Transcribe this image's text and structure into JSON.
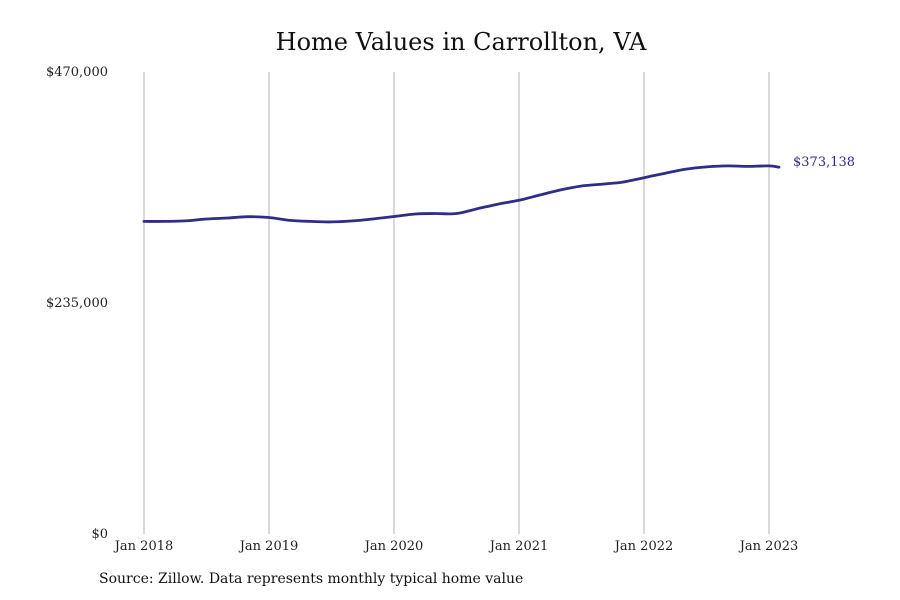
{
  "chart_data": {
    "type": "line",
    "title": "Home Values in Carrollton, VA",
    "xlabel": "",
    "ylabel": "",
    "ylim": [
      0,
      470000
    ],
    "y_ticks": [
      {
        "value": 0,
        "label": "$0"
      },
      {
        "value": 235000,
        "label": "$235,000"
      },
      {
        "value": 470000,
        "label": "$470,000"
      }
    ],
    "x_ticks": [
      {
        "value": 2018.0,
        "label": "Jan 2018"
      },
      {
        "value": 2019.0,
        "label": "Jan 2019"
      },
      {
        "value": 2020.0,
        "label": "Jan 2020"
      },
      {
        "value": 2021.0,
        "label": "Jan 2021"
      },
      {
        "value": 2022.0,
        "label": "Jan 2022"
      },
      {
        "value": 2023.0,
        "label": "Jan 2023"
      }
    ],
    "xlim": [
      2018.0,
      2023.08
    ],
    "grid": "vertical",
    "series": [
      {
        "color": "#2e2d88",
        "end_label": "$373,138",
        "x": [
          2018.0,
          2018.17,
          2018.33,
          2018.5,
          2018.67,
          2018.83,
          2019.0,
          2019.17,
          2019.33,
          2019.5,
          2019.67,
          2019.83,
          2020.0,
          2020.17,
          2020.33,
          2020.5,
          2020.67,
          2020.83,
          2021.0,
          2021.17,
          2021.33,
          2021.5,
          2021.67,
          2021.83,
          2022.0,
          2022.17,
          2022.33,
          2022.5,
          2022.67,
          2022.83,
          2023.0,
          2023.08
        ],
        "y": [
          318000,
          318000,
          318500,
          320500,
          321500,
          322800,
          322000,
          319000,
          318000,
          317500,
          318500,
          320500,
          323000,
          325500,
          326000,
          326000,
          331000,
          335500,
          339500,
          345000,
          350000,
          354000,
          356000,
          358000,
          362500,
          367000,
          371000,
          373500,
          374500,
          374000,
          374500,
          373138
        ]
      }
    ]
  },
  "source": "Source: Zillow. Data represents monthly typical home value"
}
